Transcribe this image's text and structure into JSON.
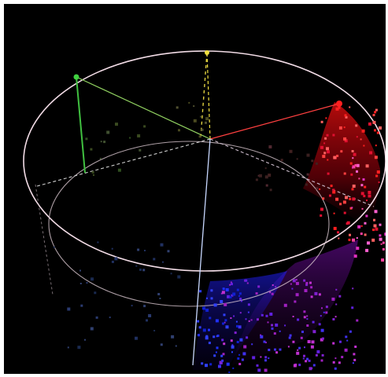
{
  "figure": {
    "kind": "hsv-color-cylinder-scatter",
    "background": "#000000",
    "outline_color": "#f2dce6",
    "hue_axis_colors": {
      "red": "#ff2020",
      "yellow": "#f0e040",
      "green": "#40c040",
      "cyan": "#3aa0a0",
      "blue": "#2030ff",
      "magenta": "#e020e0"
    },
    "labels": []
  }
}
